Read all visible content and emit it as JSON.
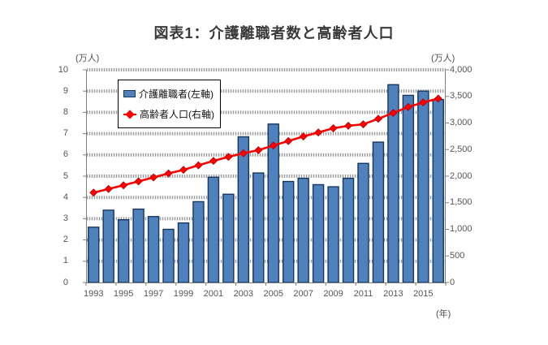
{
  "title": "図表1：介護離職者数と高齢者人口",
  "axes": {
    "left_unit": "(万人)",
    "right_unit": "(万人)",
    "x_unit": "(年)"
  },
  "legend": {
    "items": [
      {
        "label": "介護離職者(左軸)",
        "marker": "bar-swatch-icon"
      },
      {
        "label": "高齢者人口(右軸)",
        "marker": "line-diamond-icon"
      }
    ],
    "position": "top-left-inside"
  },
  "colors": {
    "bar_fill": "#4f81bd",
    "bar_border": "#17375e",
    "line": "#ff0000",
    "diamond_edge": "#b30000",
    "axis": "#808080",
    "grid_dash": "#9a9a9a",
    "grid_base": "#e9e9e9",
    "tick_text": "#555555",
    "title_text": "#3a3a3a"
  },
  "chart_data": {
    "type": "bar",
    "subtype": "combo-bar-line-dual-axis",
    "title": "図表1：介護離職者数と高齢者人口",
    "x": [
      1993,
      1994,
      1995,
      1996,
      1997,
      1998,
      1999,
      2000,
      2001,
      2002,
      2003,
      2004,
      2005,
      2006,
      2007,
      2008,
      2009,
      2010,
      2011,
      2012,
      2013,
      2014,
      2015,
      2016
    ],
    "x_tick_labels": [
      "1993",
      "1995",
      "1997",
      "1999",
      "2001",
      "2003",
      "2005",
      "2007",
      "2009",
      "2011",
      "2013",
      "2015"
    ],
    "x_label_interval": 2,
    "series": [
      {
        "name": "介護離職者(左軸)",
        "type": "bar",
        "axis": "left",
        "unit": "万人",
        "values": [
          2.6,
          3.4,
          2.95,
          3.45,
          3.1,
          2.5,
          2.8,
          3.8,
          4.95,
          4.15,
          6.85,
          5.15,
          7.45,
          4.75,
          4.9,
          4.6,
          4.5,
          4.9,
          5.6,
          6.6,
          9.3,
          8.8,
          9.0,
          8.6
        ]
      },
      {
        "name": "高齢者人口(右軸)",
        "type": "line",
        "axis": "right",
        "unit": "万人",
        "marker": "diamond",
        "values": [
          1690,
          1759,
          1828,
          1902,
          1976,
          2051,
          2119,
          2204,
          2287,
          2363,
          2431,
          2488,
          2576,
          2660,
          2746,
          2822,
          2901,
          2948,
          2975,
          3079,
          3190,
          3300,
          3387,
          3459
        ]
      }
    ],
    "left_axis": {
      "min": 0,
      "max": 10,
      "step": 1,
      "ticks": [
        "0",
        "1",
        "2",
        "3",
        "4",
        "5",
        "6",
        "7",
        "8",
        "9",
        "10"
      ],
      "label": "(万人)"
    },
    "right_axis": {
      "min": 0,
      "max": 4000,
      "step": 500,
      "ticks": [
        "0",
        "500",
        "1,000",
        "1,500",
        "2,000",
        "2,500",
        "3,000",
        "3,500",
        "4,000"
      ],
      "label": "(万人)"
    },
    "grid": "horizontal-dotted-every-1-left-unit",
    "legend_position": "top-left inside plot"
  }
}
